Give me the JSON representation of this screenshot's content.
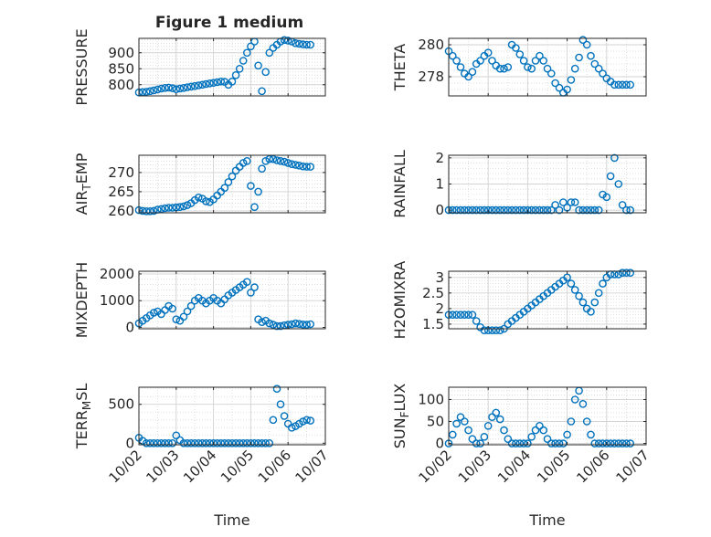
{
  "figure": {
    "title": "Figure 1 medium",
    "colors": {
      "series": "#0072BD",
      "axis": "#262626",
      "grid": "#d3d3d3",
      "background": "#ffffff"
    }
  },
  "chart_data": [
    {
      "type": "scatter",
      "ylabel": "PRESSURE",
      "xlabel": "",
      "xlim": [
        0,
        5
      ],
      "xticks": [
        0,
        1,
        2,
        3,
        4,
        5
      ],
      "ylim": [
        765,
        945
      ],
      "yticks": [
        800,
        850,
        900
      ],
      "yticklabels": [
        "800",
        "850",
        "900"
      ],
      "grid": true,
      "marker": "circle-open",
      "x": [
        0.0,
        0.1,
        0.2,
        0.3,
        0.4,
        0.5,
        0.6,
        0.7,
        0.8,
        0.9,
        1.0,
        1.1,
        1.2,
        1.3,
        1.4,
        1.5,
        1.6,
        1.7,
        1.8,
        1.9,
        2.0,
        2.1,
        2.2,
        2.3,
        2.4,
        2.5,
        2.6,
        2.7,
        2.8,
        2.9,
        3.0,
        3.1,
        3.2,
        3.3,
        3.4,
        3.5,
        3.6,
        3.7,
        3.8,
        3.9,
        4.0,
        4.1,
        4.2,
        4.3,
        4.4,
        4.5,
        4.6
      ],
      "y": [
        776,
        777,
        778,
        780,
        782,
        785,
        788,
        790,
        791,
        789,
        786,
        788,
        790,
        792,
        794,
        796,
        798,
        800,
        802,
        804,
        806,
        808,
        810,
        809,
        800,
        810,
        830,
        850,
        875,
        900,
        920,
        935,
        860,
        780,
        840,
        900,
        915,
        925,
        935,
        940,
        938,
        935,
        930,
        928,
        926,
        925,
        925
      ]
    },
    {
      "type": "scatter",
      "ylabel": "THETA",
      "xlabel": "",
      "xlim": [
        0,
        5
      ],
      "xticks": [
        0,
        1,
        2,
        3,
        4,
        5
      ],
      "ylim": [
        276.8,
        280.4
      ],
      "yticks": [
        278,
        280
      ],
      "yticklabels": [
        "278",
        "280"
      ],
      "grid": true,
      "marker": "circle-open",
      "x": [
        0.0,
        0.1,
        0.2,
        0.3,
        0.4,
        0.5,
        0.6,
        0.7,
        0.8,
        0.9,
        1.0,
        1.1,
        1.2,
        1.3,
        1.4,
        1.5,
        1.6,
        1.7,
        1.8,
        1.9,
        2.0,
        2.1,
        2.2,
        2.3,
        2.4,
        2.5,
        2.6,
        2.7,
        2.8,
        2.9,
        3.0,
        3.1,
        3.2,
        3.3,
        3.4,
        3.5,
        3.6,
        3.7,
        3.8,
        3.9,
        4.0,
        4.1,
        4.2,
        4.3,
        4.4,
        4.5,
        4.6
      ],
      "y": [
        279.6,
        279.3,
        279.0,
        278.6,
        278.2,
        278.0,
        278.3,
        278.8,
        279.0,
        279.3,
        279.5,
        279.0,
        278.7,
        278.5,
        278.5,
        278.6,
        280.0,
        279.8,
        279.4,
        279.0,
        278.6,
        278.5,
        279.0,
        279.3,
        279.0,
        278.5,
        278.2,
        277.6,
        277.3,
        277.0,
        277.2,
        277.8,
        278.5,
        279.2,
        280.3,
        280.0,
        279.3,
        278.8,
        278.5,
        278.2,
        277.9,
        277.7,
        277.5,
        277.5,
        277.5,
        277.5,
        277.5
      ]
    },
    {
      "type": "scatter",
      "ylabel": "AIR_TEMP",
      "xlabel": "",
      "xlim": [
        0,
        5
      ],
      "xticks": [
        0,
        1,
        2,
        3,
        4,
        5
      ],
      "ylim": [
        259.5,
        274.5
      ],
      "yticks": [
        260,
        265,
        270
      ],
      "yticklabels": [
        "260",
        "265",
        "270"
      ],
      "grid": true,
      "marker": "circle-open",
      "x": [
        0.0,
        0.1,
        0.2,
        0.3,
        0.4,
        0.5,
        0.6,
        0.7,
        0.8,
        0.9,
        1.0,
        1.1,
        1.2,
        1.3,
        1.4,
        1.5,
        1.6,
        1.7,
        1.8,
        1.9,
        2.0,
        2.1,
        2.2,
        2.3,
        2.4,
        2.5,
        2.6,
        2.7,
        2.8,
        2.9,
        3.0,
        3.1,
        3.2,
        3.3,
        3.4,
        3.5,
        3.6,
        3.7,
        3.8,
        3.9,
        4.0,
        4.1,
        4.2,
        4.3,
        4.4,
        4.5,
        4.6
      ],
      "y": [
        260.2,
        260.0,
        259.9,
        259.9,
        260.0,
        260.3,
        260.5,
        260.7,
        260.8,
        260.8,
        260.9,
        261.0,
        261.2,
        261.5,
        262.0,
        262.8,
        263.5,
        263.2,
        262.5,
        262.3,
        263.0,
        264.0,
        265.0,
        266.0,
        267.5,
        269.0,
        270.5,
        271.5,
        272.5,
        273.0,
        266.5,
        261.0,
        265.0,
        271.0,
        273.0,
        273.5,
        273.5,
        273.2,
        273.0,
        272.8,
        272.5,
        272.2,
        272.0,
        271.8,
        271.6,
        271.5,
        271.5
      ]
    },
    {
      "type": "scatter",
      "ylabel": "RAINFALL",
      "xlabel": "",
      "xlim": [
        0,
        5
      ],
      "xticks": [
        0,
        1,
        2,
        3,
        4,
        5
      ],
      "ylim": [
        -0.1,
        2.1
      ],
      "yticks": [
        0,
        1,
        2
      ],
      "yticklabels": [
        "0",
        "1",
        "2"
      ],
      "grid": true,
      "marker": "circle-open",
      "x": [
        0.0,
        0.1,
        0.2,
        0.3,
        0.4,
        0.5,
        0.6,
        0.7,
        0.8,
        0.9,
        1.0,
        1.1,
        1.2,
        1.3,
        1.4,
        1.5,
        1.6,
        1.7,
        1.8,
        1.9,
        2.0,
        2.1,
        2.2,
        2.3,
        2.4,
        2.5,
        2.6,
        2.7,
        2.8,
        2.9,
        3.0,
        3.1,
        3.2,
        3.3,
        3.4,
        3.5,
        3.6,
        3.7,
        3.8,
        3.9,
        4.0,
        4.1,
        4.2,
        4.3,
        4.4,
        4.5,
        4.6
      ],
      "y": [
        0,
        0,
        0,
        0,
        0,
        0,
        0,
        0,
        0,
        0,
        0,
        0,
        0,
        0,
        0,
        0,
        0,
        0,
        0,
        0,
        0,
        0,
        0,
        0,
        0,
        0,
        0,
        0.2,
        0,
        0.3,
        0.1,
        0.3,
        0.3,
        0,
        0,
        0,
        0,
        0,
        0,
        0.6,
        0.5,
        1.3,
        2.0,
        1.0,
        0.2,
        0,
        0
      ]
    },
    {
      "type": "scatter",
      "ylabel": "MIXDEPTH",
      "xlabel": "",
      "xlim": [
        0,
        5
      ],
      "xticks": [
        0,
        1,
        2,
        3,
        4,
        5
      ],
      "ylim": [
        -50,
        2100
      ],
      "yticks": [
        0,
        1000,
        2000
      ],
      "yticklabels": [
        "0",
        "1000",
        "2000"
      ],
      "grid": true,
      "marker": "circle-open",
      "x": [
        0.0,
        0.1,
        0.2,
        0.3,
        0.4,
        0.5,
        0.6,
        0.7,
        0.8,
        0.9,
        1.0,
        1.1,
        1.2,
        1.3,
        1.4,
        1.5,
        1.6,
        1.7,
        1.8,
        1.9,
        2.0,
        2.1,
        2.2,
        2.3,
        2.4,
        2.5,
        2.6,
        2.7,
        2.8,
        2.9,
        3.0,
        3.1,
        3.2,
        3.3,
        3.4,
        3.5,
        3.6,
        3.7,
        3.8,
        3.9,
        4.0,
        4.1,
        4.2,
        4.3,
        4.4,
        4.5,
        4.6
      ],
      "y": [
        150,
        250,
        350,
        450,
        550,
        600,
        500,
        650,
        800,
        700,
        300,
        250,
        400,
        600,
        800,
        1000,
        1100,
        1000,
        900,
        1000,
        1100,
        1000,
        900,
        1050,
        1200,
        1300,
        1400,
        1500,
        1600,
        1700,
        1300,
        1500,
        300,
        200,
        250,
        150,
        100,
        50,
        50,
        80,
        100,
        120,
        150,
        130,
        110,
        100,
        120
      ]
    },
    {
      "type": "scatter",
      "ylabel": "H2OMIXRA",
      "xlabel": "",
      "xlim": [
        0,
        5
      ],
      "xticks": [
        0,
        1,
        2,
        3,
        4,
        5
      ],
      "ylim": [
        1.35,
        3.2
      ],
      "yticks": [
        1.5,
        2,
        2.5,
        3
      ],
      "yticklabels": [
        "1.5",
        "2",
        "2.5",
        "3"
      ],
      "grid": true,
      "marker": "circle-open",
      "x": [
        0.0,
        0.1,
        0.2,
        0.3,
        0.4,
        0.5,
        0.6,
        0.7,
        0.8,
        0.9,
        1.0,
        1.1,
        1.2,
        1.3,
        1.4,
        1.5,
        1.6,
        1.7,
        1.8,
        1.9,
        2.0,
        2.1,
        2.2,
        2.3,
        2.4,
        2.5,
        2.6,
        2.7,
        2.8,
        2.9,
        3.0,
        3.1,
        3.2,
        3.3,
        3.4,
        3.5,
        3.6,
        3.7,
        3.8,
        3.9,
        4.0,
        4.1,
        4.2,
        4.3,
        4.4,
        4.5,
        4.6
      ],
      "y": [
        1.8,
        1.8,
        1.8,
        1.8,
        1.8,
        1.8,
        1.8,
        1.6,
        1.4,
        1.3,
        1.3,
        1.3,
        1.3,
        1.3,
        1.35,
        1.5,
        1.6,
        1.7,
        1.8,
        1.9,
        2.0,
        2.1,
        2.2,
        2.3,
        2.4,
        2.5,
        2.6,
        2.7,
        2.8,
        2.9,
        3.0,
        2.8,
        2.6,
        2.4,
        2.2,
        2.0,
        1.9,
        2.2,
        2.5,
        2.8,
        3.0,
        3.1,
        3.1,
        3.1,
        3.15,
        3.15,
        3.15
      ]
    },
    {
      "type": "scatter",
      "ylabel": "TERR_MSL",
      "xlabel": "Time",
      "xlim": [
        0,
        5
      ],
      "xticks": [
        0,
        1,
        2,
        3,
        4,
        5
      ],
      "xticklabels": [
        "10/02",
        "10/03",
        "10/04",
        "10/05",
        "10/06",
        "10/07"
      ],
      "ylim": [
        -20,
        720
      ],
      "yticks": [
        0,
        500
      ],
      "yticklabels": [
        "0",
        "500"
      ],
      "grid": true,
      "marker": "circle-open",
      "x": [
        0.0,
        0.1,
        0.2,
        0.3,
        0.4,
        0.5,
        0.6,
        0.7,
        0.8,
        0.9,
        1.0,
        1.1,
        1.2,
        1.3,
        1.4,
        1.5,
        1.6,
        1.7,
        1.8,
        1.9,
        2.0,
        2.1,
        2.2,
        2.3,
        2.4,
        2.5,
        2.6,
        2.7,
        2.8,
        2.9,
        3.0,
        3.1,
        3.2,
        3.3,
        3.4,
        3.5,
        3.6,
        3.7,
        3.8,
        3.9,
        4.0,
        4.1,
        4.2,
        4.3,
        4.4,
        4.5,
        4.6
      ],
      "y": [
        70,
        30,
        0,
        0,
        0,
        0,
        0,
        0,
        0,
        0,
        100,
        40,
        0,
        0,
        0,
        0,
        0,
        0,
        0,
        0,
        0,
        0,
        0,
        0,
        0,
        0,
        0,
        0,
        0,
        0,
        0,
        0,
        0,
        0,
        0,
        0,
        300,
        700,
        500,
        350,
        250,
        200,
        220,
        250,
        280,
        300,
        290
      ]
    },
    {
      "type": "scatter",
      "ylabel": "SUN_FLUX",
      "xlabel": "Time",
      "xlim": [
        0,
        5
      ],
      "xticks": [
        0,
        1,
        2,
        3,
        4,
        5
      ],
      "xticklabels": [
        "10/02",
        "10/03",
        "10/04",
        "10/05",
        "10/06",
        "10/07"
      ],
      "ylim": [
        -3,
        128
      ],
      "yticks": [
        0,
        50,
        100
      ],
      "yticklabels": [
        "0",
        "50",
        "100"
      ],
      "grid": true,
      "marker": "circle-open",
      "x": [
        0.0,
        0.1,
        0.2,
        0.3,
        0.4,
        0.5,
        0.6,
        0.7,
        0.8,
        0.9,
        1.0,
        1.1,
        1.2,
        1.3,
        1.4,
        1.5,
        1.6,
        1.7,
        1.8,
        1.9,
        2.0,
        2.1,
        2.2,
        2.3,
        2.4,
        2.5,
        2.6,
        2.7,
        2.8,
        2.9,
        3.0,
        3.1,
        3.2,
        3.3,
        3.4,
        3.5,
        3.6,
        3.7,
        3.8,
        3.9,
        4.0,
        4.1,
        4.2,
        4.3,
        4.4,
        4.5,
        4.6
      ],
      "y": [
        0,
        20,
        45,
        60,
        50,
        30,
        10,
        0,
        0,
        15,
        40,
        60,
        70,
        55,
        30,
        10,
        0,
        0,
        0,
        0,
        0,
        15,
        30,
        40,
        30,
        10,
        0,
        0,
        0,
        0,
        20,
        50,
        100,
        120,
        90,
        50,
        20,
        0,
        0,
        0,
        0,
        0,
        0,
        0,
        0,
        0,
        0
      ]
    }
  ]
}
